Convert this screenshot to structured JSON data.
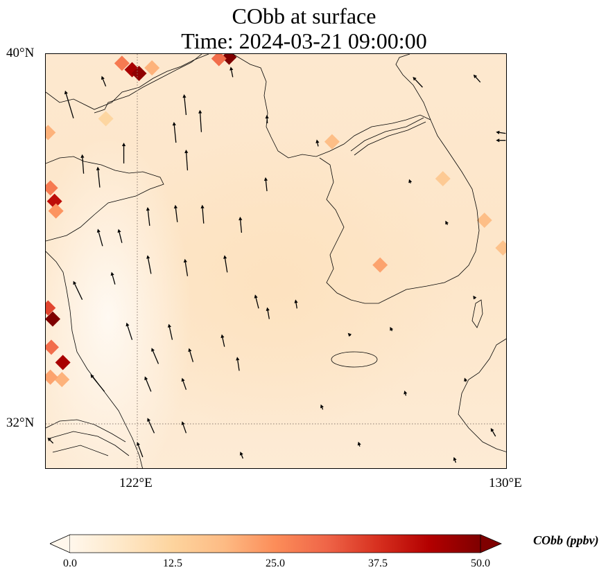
{
  "title": {
    "line1": "CObb at surface",
    "line2": "Time: 2024-03-21 09:00:00"
  },
  "chart_data": {
    "type": "heatmap",
    "title": "CObb at surface\nTime: 2024-03-21 09:00:00",
    "variable": "CObb",
    "units": "ppbv",
    "lon_range": [
      120.0,
      130.0
    ],
    "lat_range": [
      31.0,
      40.0
    ],
    "gridlines": {
      "lon": [
        122,
        130
      ],
      "lat": [
        32,
        40
      ]
    },
    "x_ticks": [
      "122°E",
      "130°E"
    ],
    "y_ticks": [
      "40°N",
      "32°N"
    ],
    "background_value": 8,
    "hotspots": [
      {
        "lon": 121.87,
        "lat": 39.66,
        "value": 45
      },
      {
        "lon": 122.02,
        "lat": 39.58,
        "value": 48
      },
      {
        "lon": 121.65,
        "lat": 39.8,
        "value": 28
      },
      {
        "lon": 122.3,
        "lat": 39.7,
        "value": 20
      },
      {
        "lon": 123.97,
        "lat": 39.93,
        "value": 50
      },
      {
        "lon": 123.75,
        "lat": 39.9,
        "value": 30
      },
      {
        "lon": 120.19,
        "lat": 36.81,
        "value": 42
      },
      {
        "lon": 120.1,
        "lat": 37.1,
        "value": 28
      },
      {
        "lon": 120.22,
        "lat": 36.6,
        "value": 24
      },
      {
        "lon": 120.05,
        "lat": 38.3,
        "value": 20
      },
      {
        "lon": 120.15,
        "lat": 34.26,
        "value": 50
      },
      {
        "lon": 120.05,
        "lat": 34.5,
        "value": 35
      },
      {
        "lon": 120.37,
        "lat": 33.32,
        "value": 45
      },
      {
        "lon": 120.12,
        "lat": 33.65,
        "value": 30
      },
      {
        "lon": 120.35,
        "lat": 32.95,
        "value": 20
      },
      {
        "lon": 120.1,
        "lat": 33.0,
        "value": 22
      },
      {
        "lon": 127.24,
        "lat": 35.43,
        "value": 22
      },
      {
        "lon": 126.2,
        "lat": 38.1,
        "value": 18
      },
      {
        "lon": 129.5,
        "lat": 36.4,
        "value": 18
      },
      {
        "lon": 128.6,
        "lat": 37.3,
        "value": 15
      },
      {
        "lon": 129.9,
        "lat": 35.8,
        "value": 17
      },
      {
        "lon": 121.3,
        "lat": 38.6,
        "value": 12
      }
    ],
    "wind_vectors": [
      [
        120.6,
        38.61,
        -4,
        13.3
      ],
      [
        120.82,
        37.41,
        -0.7,
        9.3
      ],
      [
        121.17,
        37.11,
        -1,
        10
      ],
      [
        121.69,
        37.63,
        0,
        10
      ],
      [
        122.82,
        38.08,
        -1,
        10
      ],
      [
        123.07,
        37.48,
        -0.7,
        10
      ],
      [
        123.04,
        38.68,
        -1,
        10
      ],
      [
        123.37,
        38.31,
        -0.7,
        10.7
      ],
      [
        124.79,
        37.03,
        -0.7,
        6.7
      ],
      [
        122.25,
        36.28,
        -1,
        9
      ],
      [
        122.85,
        36.36,
        -1,
        8.3
      ],
      [
        123.42,
        36.33,
        -0.7,
        9
      ],
      [
        124.24,
        36.13,
        -0.7,
        7.7
      ],
      [
        121.23,
        35.84,
        -2.3,
        8.3
      ],
      [
        121.65,
        35.91,
        -1.7,
        6.7
      ],
      [
        120.79,
        34.68,
        -4.3,
        9
      ],
      [
        122.28,
        35.24,
        -1.7,
        9
      ],
      [
        123.07,
        35.19,
        -1.3,
        8.3
      ],
      [
        123.93,
        35.27,
        -1.3,
        8.3
      ],
      [
        121.5,
        35.01,
        -1.7,
        6
      ],
      [
        124.61,
        34.49,
        -1.7,
        6.7
      ],
      [
        124.84,
        34.26,
        -1,
        5.7
      ],
      [
        125.44,
        34.49,
        -0.7,
        4.3
      ],
      [
        121.87,
        33.81,
        -2.7,
        8.3
      ],
      [
        122.74,
        33.81,
        -1.7,
        7.7
      ],
      [
        123.87,
        33.66,
        -1.3,
        6
      ],
      [
        122.44,
        33.29,
        -3.3,
        7.7
      ],
      [
        123.19,
        33.33,
        -2,
        6.7
      ],
      [
        124.19,
        33.14,
        -1,
        6.7
      ],
      [
        121.27,
        32.69,
        -6.7,
        8.3
      ],
      [
        122.28,
        32.69,
        -3,
        7.3
      ],
      [
        123.04,
        32.73,
        -2,
        5.7
      ],
      [
        122.35,
        31.79,
        -3.3,
        7.3
      ],
      [
        123.04,
        31.79,
        -2,
        5.7
      ],
      [
        122.1,
        31.27,
        -2.7,
        7.3
      ],
      [
        124.27,
        31.24,
        -1.3,
        3.3
      ],
      [
        128.16,
        39.28,
        -4.7,
        5
      ],
      [
        129.41,
        39.39,
        -3.3,
        3.7
      ],
      [
        129.96,
        38.28,
        -4.7,
        0.7
      ],
      [
        129.96,
        38.13,
        -4.7,
        0
      ],
      [
        120.16,
        31.57,
        -2.7,
        2.7
      ],
      [
        129.74,
        31.72,
        -2.3,
        4
      ],
      [
        128.88,
        31.15,
        -1,
        2.7
      ],
      [
        121.3,
        39.3,
        -2,
        5
      ],
      [
        124.05,
        39.5,
        -1,
        5
      ],
      [
        124.8,
        38.5,
        -0.3,
        4
      ],
      [
        125.9,
        38.0,
        -0.7,
        3.3
      ],
      [
        127.9,
        37.2,
        -0.7,
        2
      ],
      [
        128.7,
        36.3,
        -1,
        2
      ],
      [
        129.3,
        34.7,
        -1,
        1.5
      ],
      [
        127.5,
        34.0,
        -1,
        2
      ],
      [
        126.0,
        32.3,
        -1,
        2.5
      ],
      [
        126.8,
        31.5,
        -0.7,
        2.3
      ],
      [
        127.8,
        32.6,
        -0.7,
        2.5
      ],
      [
        129.1,
        32.9,
        -0.7,
        2
      ],
      [
        126.6,
        33.9,
        -1.3,
        1.3
      ]
    ],
    "colorbar": {
      "label": "CObb (ppbv)",
      "range": [
        0.0,
        50.0
      ],
      "ticks": [
        "0.0",
        "12.5",
        "25.0",
        "37.5",
        "50.0"
      ],
      "extend": "both",
      "colormap": [
        "#fff7ec",
        "#fee8c8",
        "#fdd49e",
        "#fdbb84",
        "#fc8d59",
        "#ef6548",
        "#d7301f",
        "#b30000",
        "#7f0000"
      ]
    }
  }
}
